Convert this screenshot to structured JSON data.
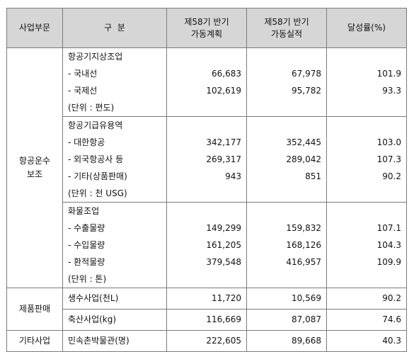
{
  "header": {
    "dept": "사업부문",
    "category": "구  분",
    "plan_line1": "제58기 반기",
    "plan_line2": "가동계획",
    "actual_line1": "제58기 반기",
    "actual_line2": "가동실적",
    "rate": "달성률(%)"
  },
  "groups": {
    "aviation_line1": "항공운수",
    "aviation_line2": "보조",
    "products": "제품판매",
    "other": "기타사업"
  },
  "ground": {
    "label": [
      "항공기지상조업",
      "- 국내선",
      "- 국제선",
      "(단위 : 편도)"
    ],
    "plan": [
      "",
      "66,683",
      "102,619",
      ""
    ],
    "actual": [
      "",
      "67,978",
      "95,782",
      ""
    ],
    "rate": [
      "",
      "101.9",
      "93.3",
      ""
    ]
  },
  "supply": {
    "label": [
      "항공기급유용역",
      "- 대한항공",
      "- 외국항공사 등",
      "- 기타(상품판매)",
      "(단위 : 천 USG)"
    ],
    "plan": [
      "",
      "342,177",
      "269,317",
      "943",
      ""
    ],
    "actual": [
      "",
      "352,445",
      "289,042",
      "851",
      ""
    ],
    "rate": [
      "",
      "103.0",
      "107.3",
      "90.2",
      ""
    ]
  },
  "cargo": {
    "label": [
      "화물조업",
      "- 수출물량",
      "- 수입물량",
      "- 환적물량",
      "(단위 : 톤)"
    ],
    "plan": [
      "",
      "149,299",
      "161,205",
      "379,548",
      ""
    ],
    "actual": [
      "",
      "159,832",
      "168,126",
      "416,957",
      ""
    ],
    "rate": [
      "",
      "107.1",
      "104.3",
      "109.9",
      ""
    ]
  },
  "water": {
    "label": "생수사업(천L)",
    "plan": "11,720",
    "actual": "10,569",
    "rate": "90.2"
  },
  "livestock": {
    "label": "축산사업(kg)",
    "plan": "116,669",
    "actual": "87,087",
    "rate": "74.6"
  },
  "museum": {
    "label": "민속촌박물관(명)",
    "plan": "222,605",
    "actual": "89,668",
    "rate": "40.3"
  }
}
